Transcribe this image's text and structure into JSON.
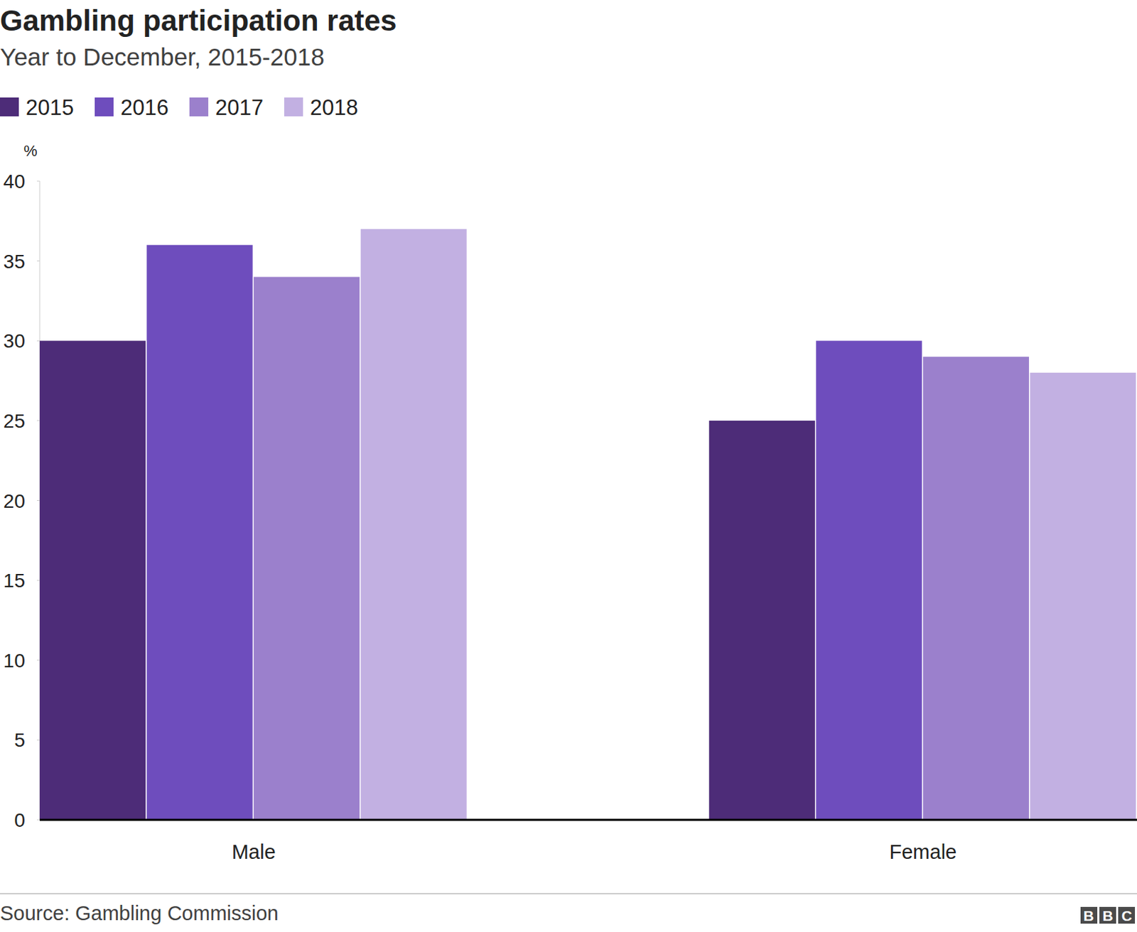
{
  "chart_data": {
    "type": "bar",
    "title": "Gambling participation rates",
    "subtitle": "Year to December, 2015-2018",
    "y_label": "%",
    "source": "Source: Gambling Commission",
    "logo": "BBC",
    "categories": [
      "Male",
      "Female"
    ],
    "series": [
      {
        "name": "2015",
        "color": "#4d2c78",
        "values": [
          30,
          25
        ]
      },
      {
        "name": "2016",
        "color": "#6e4dbd",
        "values": [
          36,
          30
        ]
      },
      {
        "name": "2017",
        "color": "#9b80cc",
        "values": [
          34,
          29
        ]
      },
      {
        "name": "2018",
        "color": "#c2b0e2",
        "values": [
          37,
          28
        ]
      }
    ],
    "ylim": [
      0,
      40
    ],
    "yticks": [
      0,
      5,
      10,
      15,
      20,
      25,
      30,
      35,
      40
    ],
    "grid": false,
    "legend": "top-left"
  }
}
